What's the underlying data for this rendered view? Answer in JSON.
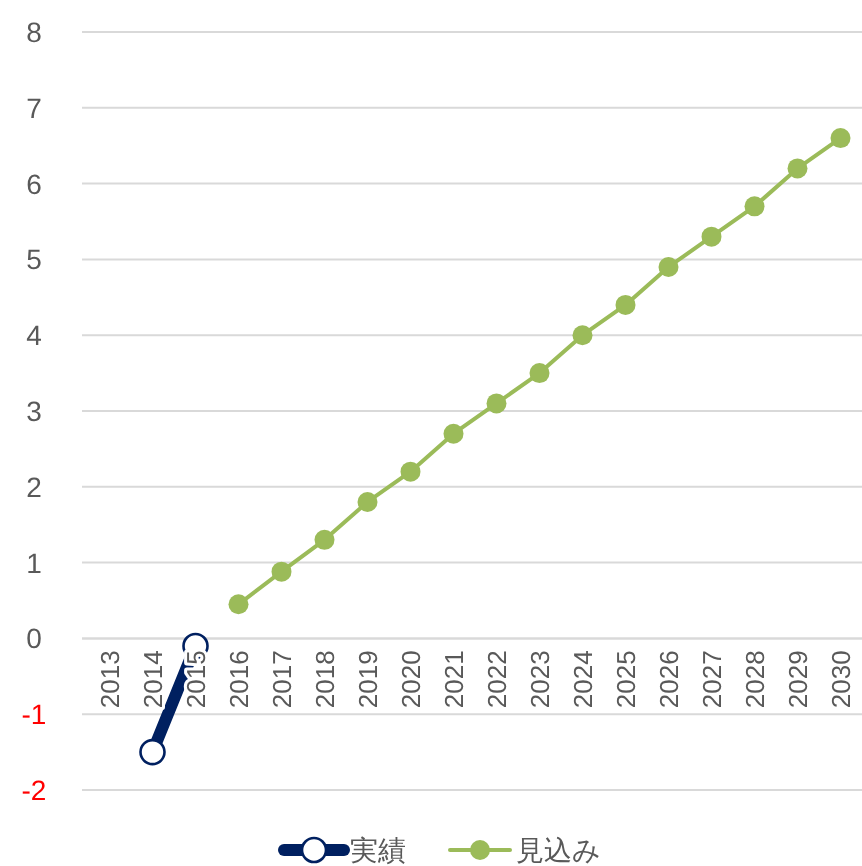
{
  "chart_data": {
    "type": "line",
    "categories": [
      "2013",
      "2014",
      "2015",
      "2016",
      "2017",
      "2018",
      "2019",
      "2020",
      "2021",
      "2022",
      "2023",
      "2024",
      "2025",
      "2026",
      "2027",
      "2028",
      "2029",
      "2030"
    ],
    "series": [
      {
        "name": "実績",
        "color": "#002060",
        "values": [
          null,
          -1.5,
          -0.1,
          null,
          null,
          null,
          null,
          null,
          null,
          null,
          null,
          null,
          null,
          null,
          null,
          null,
          null,
          null
        ]
      },
      {
        "name": "見込み",
        "color": "#9bbb59",
        "values": [
          null,
          null,
          null,
          0.45,
          0.88,
          1.3,
          1.8,
          2.2,
          2.7,
          3.1,
          3.5,
          4.0,
          4.4,
          4.9,
          5.3,
          5.7,
          6.2,
          6.6
        ]
      }
    ],
    "ylim": [
      -2,
      8
    ],
    "yticks": [
      -2,
      -1,
      0,
      1,
      2,
      3,
      4,
      5,
      6,
      7,
      8
    ],
    "grid": "y",
    "legend": "bottom",
    "marker": "circle"
  }
}
